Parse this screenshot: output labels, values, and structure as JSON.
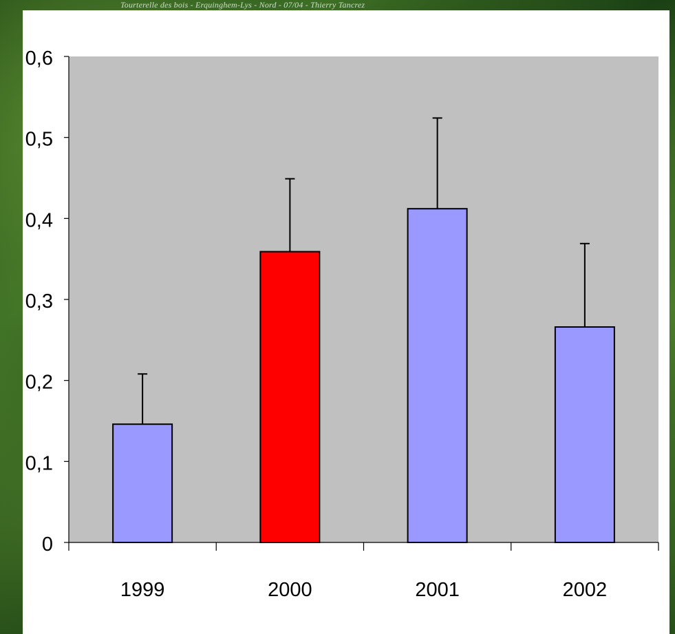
{
  "background": {
    "caption": "Tourterelle des bois - Erquinghem-Lys - Nord - 07/04 - Thierry Tancrez"
  },
  "chart_data": {
    "type": "bar",
    "categories": [
      "1999",
      "2000",
      "2001",
      "2002"
    ],
    "values": [
      0.146,
      0.359,
      0.412,
      0.266
    ],
    "error_upper": [
      0.208,
      0.449,
      0.524,
      0.369
    ],
    "ylim": [
      0,
      0.6
    ],
    "yticks": [
      {
        "value": 0,
        "label": "0"
      },
      {
        "value": 0.1,
        "label": "0,1"
      },
      {
        "value": 0.2,
        "label": "0,2"
      },
      {
        "value": 0.3,
        "label": "0,3"
      },
      {
        "value": 0.4,
        "label": "0,4"
      },
      {
        "value": 0.5,
        "label": "0,5"
      },
      {
        "value": 0.6,
        "label": "0,6"
      }
    ],
    "title": "",
    "xlabel": "",
    "ylabel": "",
    "grid": false,
    "colors": {
      "plot_background": "#c0c0c0",
      "default_bar": "#9999ff",
      "highlight_bar": "#ff0000",
      "highlight_category": "2000",
      "axis": "#000000"
    }
  }
}
